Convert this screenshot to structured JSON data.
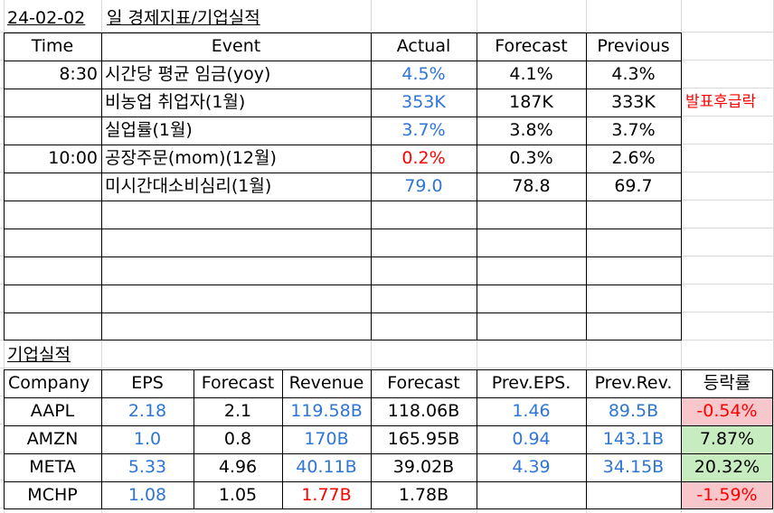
{
  "header": {
    "date": "24-02-02",
    "title": "일 경제지표/기업실적"
  },
  "econ": {
    "columns": {
      "time": "Time",
      "event": "Event",
      "actual": "Actual",
      "forecast": "Forecast",
      "previous": "Previous"
    },
    "rows": [
      {
        "time": "8:30",
        "event": "시간당 평균 임금(yoy)",
        "actual": "4.5%",
        "forecast": "4.1%",
        "previous": "4.3%",
        "note": ""
      },
      {
        "time": "",
        "event": "비농업 취업자(1월)",
        "actual": "353K",
        "forecast": "187K",
        "previous": "333K",
        "note": "발표후급락"
      },
      {
        "time": "",
        "event": "실업률(1월)",
        "actual": "3.7%",
        "forecast": "3.8%",
        "previous": "3.7%",
        "note": ""
      },
      {
        "time": "10:00",
        "event": "공장주문(mom)(12월)",
        "actual": "0.2%",
        "forecast": "0.3%",
        "previous": "2.6%",
        "note": ""
      },
      {
        "time": "",
        "event": "미시간대소비심리(1월)",
        "actual": "79.0",
        "forecast": "78.8",
        "previous": "69.7",
        "note": ""
      }
    ]
  },
  "earnings": {
    "title": "기업실적",
    "columns": {
      "company": "Company",
      "eps": "EPS",
      "eps_forecast": "Forecast",
      "revenue": "Revenue",
      "rev_forecast": "Forecast",
      "prev_eps": "Prev.EPS.",
      "prev_rev": "Prev.Rev.",
      "change": "등락률"
    },
    "rows": [
      {
        "company": "AAPL",
        "eps": "2.18",
        "eps_forecast": "2.1",
        "revenue": "119.58B",
        "rev_forecast": "118.06B",
        "prev_eps": "1.46",
        "prev_rev": "89.5B",
        "change": "-0.54%"
      },
      {
        "company": "AMZN",
        "eps": "1.0",
        "eps_forecast": "0.8",
        "revenue": "170B",
        "rev_forecast": "165.95B",
        "prev_eps": "0.94",
        "prev_rev": "143.1B",
        "change": "7.87%"
      },
      {
        "company": "META",
        "eps": "5.33",
        "eps_forecast": "4.96",
        "revenue": "40.11B",
        "rev_forecast": "39.02B",
        "prev_eps": "4.39",
        "prev_rev": "34.15B",
        "change": "20.32%"
      },
      {
        "company": "MCHP",
        "eps": "1.08",
        "eps_forecast": "1.05",
        "revenue": "1.77B",
        "rev_forecast": "1.78B",
        "prev_eps": "",
        "prev_rev": "",
        "change": "-1.59%"
      }
    ]
  },
  "colors": {
    "blue": "#2e75d6",
    "red": "#ff0000",
    "negative_bg": "#f7c7cb",
    "positive_bg": "#c6ecc0"
  }
}
